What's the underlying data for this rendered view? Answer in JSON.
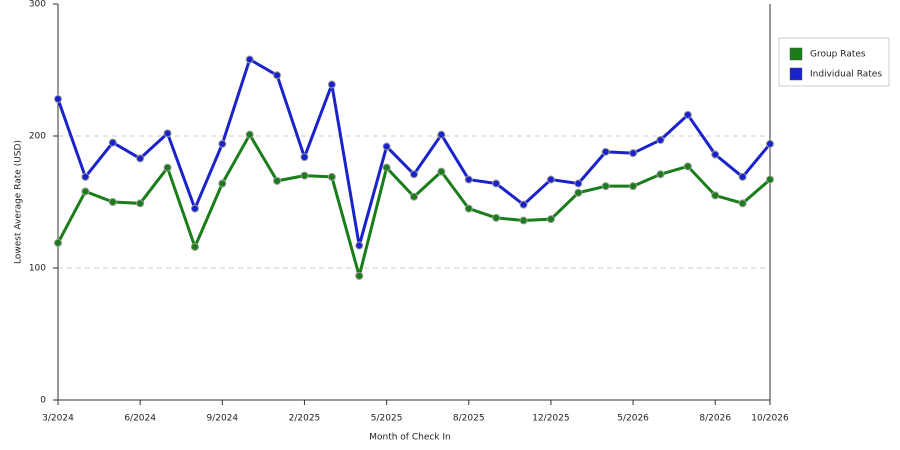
{
  "chart_data": {
    "type": "line",
    "x_label": "Month of Check In",
    "y_label": "Lowest Average Rate (USD)",
    "categories": [
      "3/2024",
      null,
      null,
      "6/2024",
      null,
      null,
      "9/2024",
      null,
      null,
      "2/2025",
      null,
      null,
      "5/2025",
      null,
      null,
      "8/2025",
      null,
      null,
      "12/2025",
      null,
      null,
      "5/2026",
      null,
      null,
      "8/2026",
      null,
      "10/2026"
    ],
    "series": [
      {
        "name": "Group Rates",
        "color": "#1a7d1a",
        "values": [
          119,
          158,
          150,
          149,
          176,
          116,
          164,
          201,
          166,
          170,
          169,
          94,
          176,
          154,
          173,
          145,
          138,
          136,
          137,
          157,
          162,
          162,
          171,
          177,
          155,
          149,
          167
        ]
      },
      {
        "name": "Individual Rates",
        "color": "#1a22cc",
        "values": [
          228,
          169,
          195,
          183,
          202,
          145,
          194,
          258,
          246,
          184,
          239,
          117,
          192,
          171,
          201,
          167,
          164,
          148,
          167,
          164,
          188,
          187,
          197,
          216,
          186,
          169,
          194
        ]
      }
    ],
    "ylim": [
      0,
      300
    ],
    "yticks": [
      0,
      100,
      200,
      300
    ],
    "grid": true,
    "legend": "right"
  }
}
